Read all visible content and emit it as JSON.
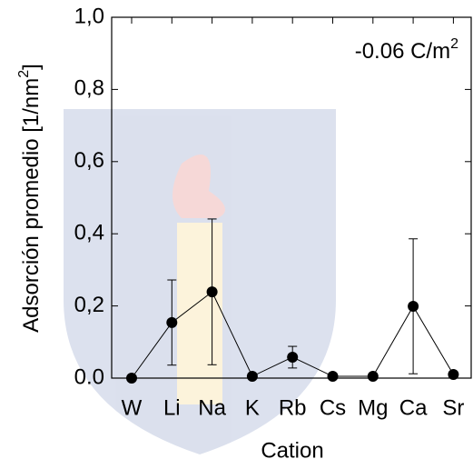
{
  "chart_data": {
    "type": "line",
    "annotation": {
      "text": "-0.06 C/m",
      "sup": "2"
    },
    "x_label": "Cation",
    "y_label": {
      "text": "Adsorción promedio [1/nm",
      "sup": "2",
      "tail": "]"
    },
    "categories": [
      "W",
      "Li",
      "Na",
      "K",
      "Rb",
      "Cs",
      "Mg",
      "Ca",
      "Sr"
    ],
    "series": [
      {
        "color": "#000000",
        "values": [
          0.0,
          0.154,
          0.239,
          0.005,
          0.058,
          0.005,
          0.005,
          0.199,
          0.01
        ],
        "errors": [
          0,
          0.118,
          0.202,
          0,
          0.03,
          0,
          0,
          0.187,
          0
        ]
      }
    ],
    "ylim": [
      0,
      1
    ],
    "yticks": [
      {
        "value": 0,
        "label": "0.0"
      },
      {
        "value": 0.2,
        "label": "0,2"
      },
      {
        "value": 0.4,
        "label": "0,4"
      },
      {
        "value": 0.6,
        "label": "0,6"
      },
      {
        "value": 0.8,
        "label": "0,8"
      },
      {
        "value": 1,
        "label": "1,0"
      }
    ]
  }
}
